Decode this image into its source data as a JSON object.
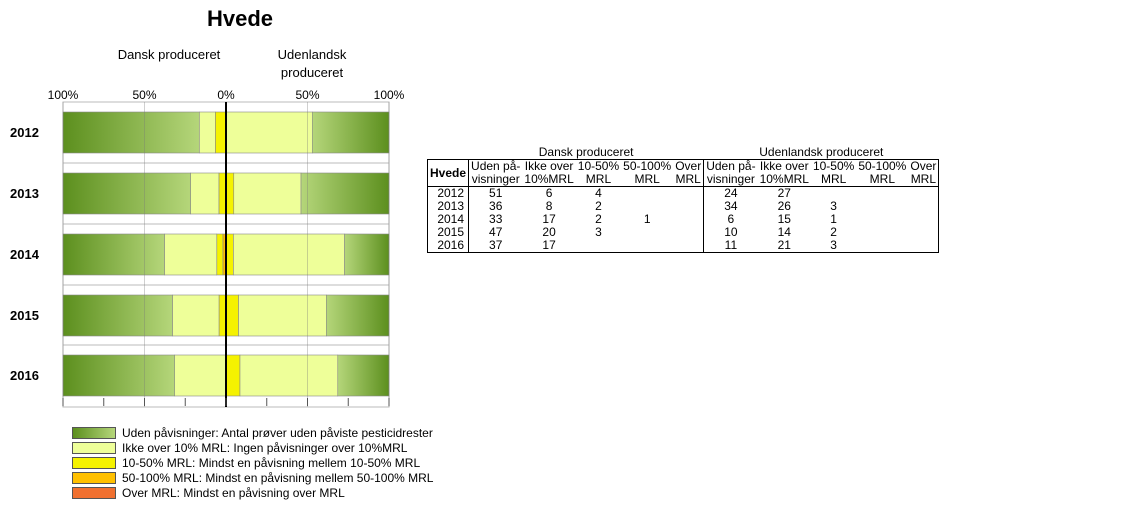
{
  "chart_data": {
    "type": "bar",
    "title": "Hvede",
    "left_label": "Dansk produceret",
    "right_label": "Udenlandsk produceret",
    "xticks": [
      "100%",
      "50%",
      "0%",
      "50%",
      "100%"
    ],
    "categories": [
      "2012",
      "2013",
      "2014",
      "2015",
      "2016"
    ],
    "series": [
      {
        "name": "Uden påvisninger",
        "color": "#6a9a2a",
        "dansk": [
          51,
          36,
          33,
          47,
          37
        ],
        "udenlandsk": [
          24,
          34,
          6,
          10,
          11
        ]
      },
      {
        "name": "Ikke over 10%MRL",
        "color": "#eeff99",
        "dansk": [
          6,
          8,
          17,
          20,
          17
        ],
        "udenlandsk": [
          27,
          26,
          15,
          14,
          21
        ]
      },
      {
        "name": "10-50% MRL",
        "color": "#f5f200",
        "dansk": [
          4,
          2,
          2,
          3,
          null
        ],
        "udenlandsk": [
          null,
          3,
          1,
          2,
          3
        ]
      },
      {
        "name": "50-100% MRL",
        "color": "#ffc000",
        "dansk": [
          null,
          null,
          1,
          null,
          null
        ],
        "udenlandsk": [
          null,
          null,
          null,
          null,
          null
        ]
      },
      {
        "name": "Over MRL",
        "color": "#f07030",
        "dansk": [
          null,
          null,
          null,
          null,
          null
        ],
        "udenlandsk": [
          null,
          null,
          null,
          null,
          null
        ]
      }
    ],
    "legend": [
      "Uden påvisninger: Antal prøver uden påviste pesticidrester",
      "Ikke over 10% MRL: Ingen påvisninger over 10%MRL",
      "10-50% MRL: Mindst en påvisning mellem 10-50% MRL",
      "50-100% MRL: Mindst en påvisning mellem 50-100% MRL",
      "Over MRL:  Mindst en påvisning over MRL"
    ]
  },
  "table": {
    "row_header": "Hvede",
    "group_dansk": "Dansk produceret",
    "group_udenlandsk": "Udenlandsk produceret",
    "col_line1": [
      "Uden på-",
      "Ikke over",
      "10-50%",
      "50-100%",
      "Over"
    ],
    "col_line2": [
      "visninger",
      "10%MRL",
      "MRL",
      "MRL",
      "MRL"
    ]
  }
}
